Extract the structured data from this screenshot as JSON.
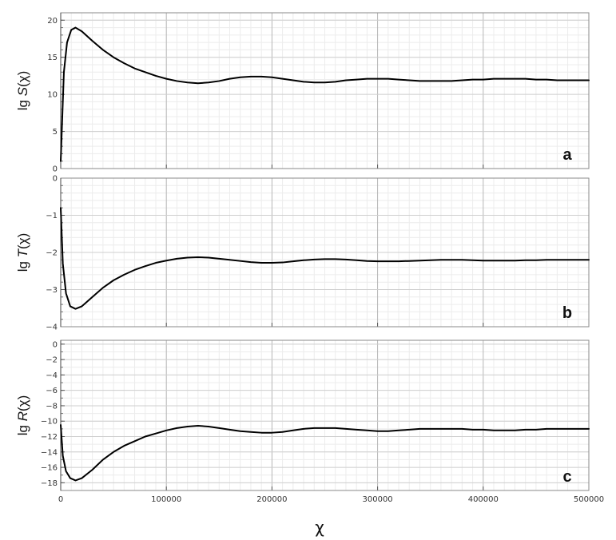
{
  "chart_data": [
    {
      "type": "line",
      "panel_label": "a",
      "ylabel": {
        "prefix": "lg ",
        "fn": "S",
        "arg": "(χ)"
      },
      "ylim": [
        0,
        21
      ],
      "yticks": [
        0,
        5,
        10,
        15,
        20
      ],
      "xlim": [
        0,
        500000
      ],
      "grid": true,
      "series": [
        {
          "x": [
            0,
            3000,
            6000,
            10000,
            14000,
            20000,
            30000,
            40000,
            50000,
            60000,
            70000,
            80000,
            90000,
            100000,
            110000,
            120000,
            130000,
            140000,
            150000,
            160000,
            170000,
            180000,
            190000,
            200000,
            210000,
            220000,
            230000,
            240000,
            250000,
            260000,
            270000,
            280000,
            290000,
            300000,
            310000,
            320000,
            330000,
            340000,
            350000,
            360000,
            370000,
            380000,
            390000,
            400000,
            410000,
            420000,
            430000,
            440000,
            450000,
            460000,
            470000,
            480000,
            490000,
            500000
          ],
          "y": [
            1.0,
            13.0,
            17.0,
            18.7,
            19.0,
            18.5,
            17.2,
            16.0,
            15.0,
            14.2,
            13.5,
            13.0,
            12.5,
            12.1,
            11.8,
            11.6,
            11.5,
            11.6,
            11.8,
            12.1,
            12.3,
            12.4,
            12.4,
            12.3,
            12.1,
            11.9,
            11.7,
            11.6,
            11.6,
            11.7,
            11.9,
            12.0,
            12.1,
            12.1,
            12.1,
            12.0,
            11.9,
            11.8,
            11.8,
            11.8,
            11.8,
            11.9,
            12.0,
            12.0,
            12.1,
            12.1,
            12.1,
            12.1,
            12.0,
            12.0,
            11.9,
            11.9,
            11.9,
            11.9
          ]
        }
      ]
    },
    {
      "type": "line",
      "panel_label": "b",
      "ylabel": {
        "prefix": "lg ",
        "fn": "T",
        "arg": "(χ)"
      },
      "ylim": [
        -4,
        0
      ],
      "yticks": [
        -4,
        -3,
        -2,
        -1,
        0
      ],
      "xlim": [
        0,
        500000
      ],
      "grid": true,
      "series": [
        {
          "x": [
            0,
            2000,
            5000,
            9000,
            14000,
            20000,
            30000,
            40000,
            50000,
            60000,
            70000,
            80000,
            90000,
            100000,
            110000,
            120000,
            130000,
            140000,
            150000,
            160000,
            170000,
            180000,
            190000,
            200000,
            210000,
            220000,
            230000,
            240000,
            250000,
            260000,
            270000,
            280000,
            290000,
            300000,
            310000,
            320000,
            330000,
            340000,
            350000,
            360000,
            370000,
            380000,
            390000,
            400000,
            410000,
            420000,
            430000,
            440000,
            450000,
            460000,
            470000,
            480000,
            490000,
            500000
          ],
          "y": [
            -0.8,
            -2.3,
            -3.1,
            -3.45,
            -3.52,
            -3.45,
            -3.2,
            -2.95,
            -2.75,
            -2.6,
            -2.47,
            -2.37,
            -2.28,
            -2.22,
            -2.17,
            -2.14,
            -2.13,
            -2.14,
            -2.17,
            -2.2,
            -2.23,
            -2.26,
            -2.28,
            -2.28,
            -2.27,
            -2.24,
            -2.21,
            -2.19,
            -2.18,
            -2.18,
            -2.19,
            -2.21,
            -2.23,
            -2.24,
            -2.24,
            -2.24,
            -2.23,
            -2.22,
            -2.21,
            -2.2,
            -2.2,
            -2.2,
            -2.21,
            -2.22,
            -2.22,
            -2.22,
            -2.22,
            -2.21,
            -2.21,
            -2.2,
            -2.2,
            -2.2,
            -2.2,
            -2.2
          ]
        }
      ]
    },
    {
      "type": "line",
      "panel_label": "c",
      "ylabel": {
        "prefix": "lg ",
        "fn": "R",
        "arg": "(χ)"
      },
      "ylim": [
        -19,
        0.5
      ],
      "yticks": [
        -18,
        -16,
        -14,
        -12,
        -10,
        -8,
        -6,
        -4,
        -2,
        0
      ],
      "xlim": [
        0,
        500000
      ],
      "xticks": [
        0,
        100000,
        200000,
        300000,
        400000,
        500000
      ],
      "xlabel": "χ",
      "grid": true,
      "series": [
        {
          "x": [
            0,
            2000,
            5000,
            9000,
            14000,
            20000,
            30000,
            40000,
            50000,
            60000,
            70000,
            80000,
            90000,
            100000,
            110000,
            120000,
            130000,
            140000,
            150000,
            160000,
            170000,
            180000,
            190000,
            200000,
            210000,
            220000,
            230000,
            240000,
            250000,
            260000,
            270000,
            280000,
            290000,
            300000,
            310000,
            320000,
            330000,
            340000,
            350000,
            360000,
            370000,
            380000,
            390000,
            400000,
            410000,
            420000,
            430000,
            440000,
            450000,
            460000,
            470000,
            480000,
            490000,
            500000
          ],
          "y": [
            -10.5,
            -14.5,
            -16.5,
            -17.4,
            -17.7,
            -17.4,
            -16.3,
            -15.0,
            -14.0,
            -13.2,
            -12.6,
            -12.0,
            -11.6,
            -11.2,
            -10.9,
            -10.7,
            -10.6,
            -10.7,
            -10.9,
            -11.1,
            -11.3,
            -11.4,
            -11.5,
            -11.5,
            -11.4,
            -11.2,
            -11.0,
            -10.9,
            -10.9,
            -10.9,
            -11.0,
            -11.1,
            -11.2,
            -11.3,
            -11.3,
            -11.2,
            -11.1,
            -11.0,
            -11.0,
            -11.0,
            -11.0,
            -11.0,
            -11.1,
            -11.1,
            -11.2,
            -11.2,
            -11.2,
            -11.1,
            -11.1,
            -11.0,
            -11.0,
            -11.0,
            -11.0,
            -11.0
          ]
        }
      ]
    }
  ]
}
